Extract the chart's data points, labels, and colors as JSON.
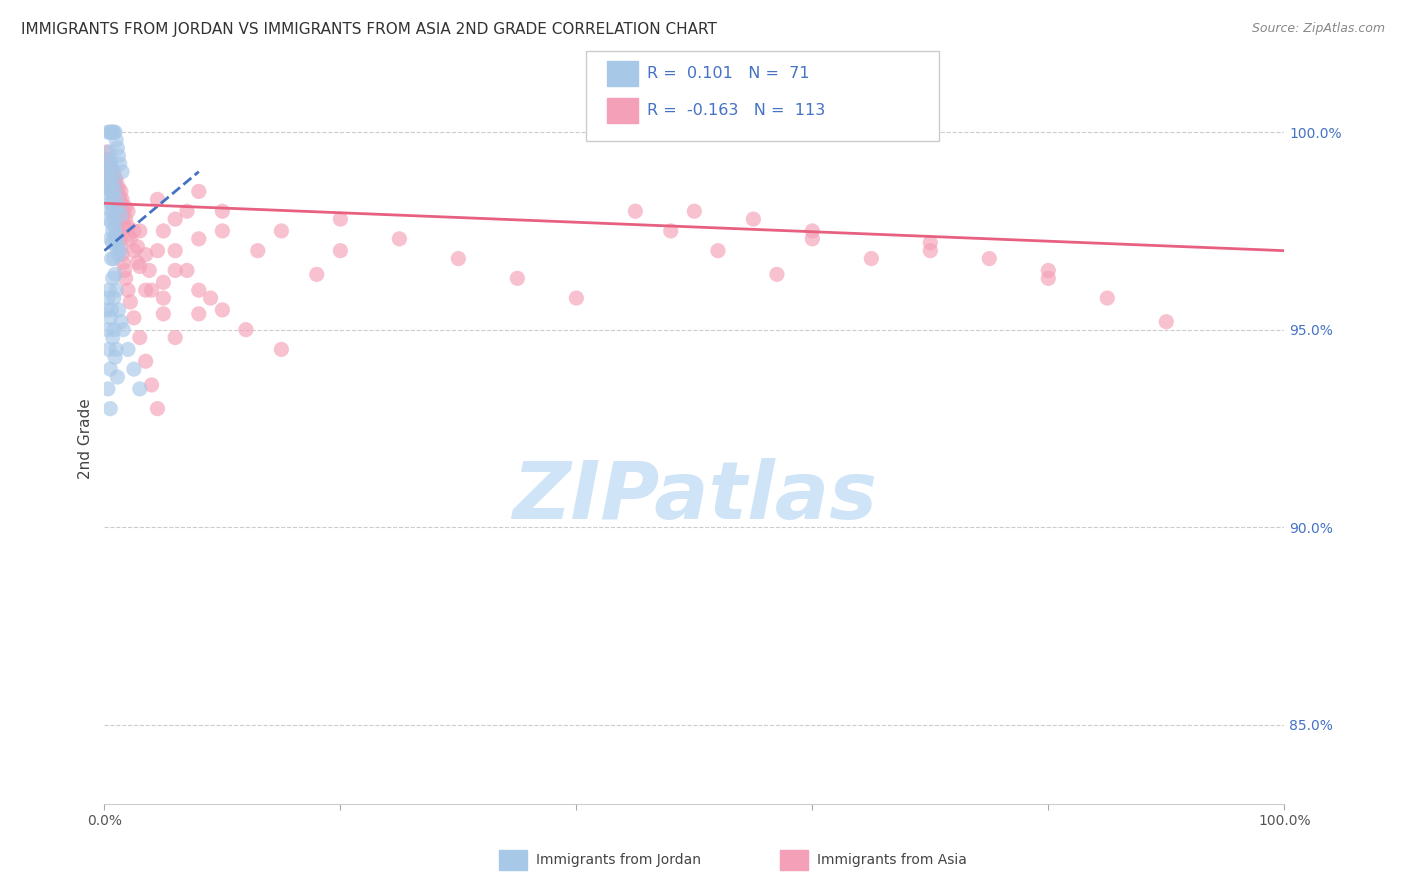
{
  "title": "IMMIGRANTS FROM JORDAN VS IMMIGRANTS FROM ASIA 2ND GRADE CORRELATION CHART",
  "source": "Source: ZipAtlas.com",
  "ylabel": "2nd Grade",
  "xlim": [
    0.0,
    100.0
  ],
  "ylim": [
    83.0,
    101.5
  ],
  "yticks": [
    85.0,
    90.0,
    95.0,
    100.0
  ],
  "ytick_labels": [
    "85.0%",
    "90.0%",
    "95.0%",
    "100.0%"
  ],
  "legend_jordan_R": "0.101",
  "legend_jordan_N": "71",
  "legend_asia_R": "-0.163",
  "legend_asia_N": "113",
  "color_jordan": "#a8c8e8",
  "color_asia": "#f4a0b8",
  "line_jordan": "#4472c4",
  "line_asia": "#e86080",
  "bg_color": "#ffffff",
  "watermark": "ZIPatlas",
  "watermark_color": "#d0e4f8",
  "jordan_x": [
    0.3,
    0.5,
    0.6,
    0.7,
    0.8,
    0.9,
    1.0,
    1.1,
    1.2,
    1.3,
    1.5,
    0.4,
    0.5,
    0.6,
    0.7,
    0.8,
    0.9,
    1.0,
    1.2,
    1.4,
    0.3,
    0.4,
    0.5,
    0.6,
    0.7,
    0.8,
    0.9,
    1.0,
    1.1,
    1.3,
    0.4,
    0.5,
    0.6,
    0.7,
    0.8,
    1.0,
    1.2,
    0.3,
    0.4,
    0.5,
    0.6,
    0.7,
    0.8,
    0.9,
    1.0,
    0.4,
    0.5,
    0.6,
    0.7,
    0.8,
    1.2,
    1.4,
    1.6,
    2.0,
    2.5,
    3.0,
    0.2,
    0.3,
    0.4,
    0.5,
    0.4,
    0.6,
    0.8,
    1.0,
    0.3,
    0.5,
    0.7,
    0.9,
    1.1,
    0.3,
    0.5
  ],
  "jordan_y": [
    100.0,
    100.0,
    100.0,
    100.0,
    100.0,
    100.0,
    99.8,
    99.6,
    99.4,
    99.2,
    99.0,
    99.5,
    99.3,
    99.1,
    98.9,
    98.7,
    98.5,
    98.3,
    98.1,
    97.9,
    98.8,
    98.6,
    98.4,
    98.2,
    98.0,
    97.8,
    97.6,
    97.4,
    97.2,
    97.0,
    99.0,
    98.5,
    98.0,
    97.5,
    97.3,
    97.1,
    96.9,
    99.2,
    98.7,
    98.2,
    97.7,
    97.2,
    96.8,
    96.4,
    96.0,
    97.8,
    97.3,
    96.8,
    96.3,
    95.8,
    95.5,
    95.2,
    95.0,
    94.5,
    94.0,
    93.5,
    95.5,
    95.0,
    94.5,
    94.0,
    96.0,
    95.5,
    95.0,
    94.5,
    95.8,
    95.3,
    94.8,
    94.3,
    93.8,
    93.5,
    93.0
  ],
  "asia_x": [
    0.2,
    0.3,
    0.4,
    0.5,
    0.6,
    0.7,
    0.8,
    0.9,
    1.0,
    1.1,
    1.2,
    1.3,
    1.4,
    1.5,
    1.6,
    1.7,
    1.8,
    2.0,
    2.2,
    2.5,
    3.0,
    3.5,
    4.0,
    4.5,
    5.0,
    6.0,
    7.0,
    8.0,
    10.0,
    12.0,
    15.0,
    20.0,
    25.0,
    30.0,
    35.0,
    40.0,
    50.0,
    60.0,
    70.0,
    80.0,
    0.3,
    0.5,
    0.7,
    0.9,
    1.1,
    1.3,
    1.5,
    1.7,
    2.0,
    2.5,
    3.0,
    4.0,
    5.0,
    6.0,
    8.0,
    10.0,
    15.0,
    20.0,
    0.4,
    0.6,
    0.8,
    1.0,
    1.2,
    1.4,
    1.8,
    2.2,
    2.8,
    3.5,
    4.5,
    6.0,
    8.0,
    0.5,
    0.7,
    1.0,
    1.3,
    1.6,
    2.0,
    2.8,
    3.8,
    5.0,
    7.0,
    10.0,
    13.0,
    18.0,
    0.4,
    0.6,
    0.9,
    1.2,
    1.5,
    2.0,
    3.0,
    4.5,
    6.0,
    9.0,
    0.3,
    0.5,
    0.8,
    1.0,
    1.4,
    1.8,
    2.5,
    3.5,
    5.0,
    8.0,
    70.0,
    75.0,
    80.0,
    85.0,
    90.0,
    55.0,
    60.0,
    65.0,
    45.0,
    48.0,
    52.0,
    57.0
  ],
  "asia_y": [
    99.5,
    99.3,
    99.1,
    98.9,
    98.7,
    98.5,
    98.3,
    98.1,
    97.9,
    97.7,
    97.5,
    97.3,
    97.1,
    96.9,
    96.7,
    96.5,
    96.3,
    96.0,
    95.7,
    95.3,
    94.8,
    94.2,
    93.6,
    93.0,
    97.5,
    97.0,
    96.5,
    96.0,
    95.5,
    95.0,
    94.5,
    97.8,
    97.3,
    96.8,
    96.3,
    95.8,
    98.0,
    97.5,
    97.0,
    96.5,
    99.0,
    98.8,
    98.6,
    98.4,
    98.2,
    98.0,
    97.8,
    97.6,
    97.4,
    97.0,
    96.6,
    96.0,
    95.4,
    94.8,
    98.5,
    98.0,
    97.5,
    97.0,
    99.2,
    99.0,
    98.8,
    98.6,
    98.4,
    98.2,
    97.8,
    97.3,
    96.7,
    96.0,
    98.3,
    97.8,
    97.3,
    98.9,
    98.7,
    98.5,
    98.3,
    98.0,
    97.6,
    97.1,
    96.5,
    95.8,
    98.0,
    97.5,
    97.0,
    96.4,
    99.1,
    99.0,
    98.8,
    98.6,
    98.3,
    98.0,
    97.5,
    97.0,
    96.5,
    95.8,
    99.3,
    99.2,
    99.0,
    98.8,
    98.5,
    98.1,
    97.5,
    96.9,
    96.2,
    95.4,
    97.2,
    96.8,
    96.3,
    95.8,
    95.2,
    97.8,
    97.3,
    96.8,
    98.0,
    97.5,
    97.0,
    96.4
  ],
  "jordan_line_x": [
    0.0,
    8.0
  ],
  "jordan_line_y": [
    97.0,
    99.0
  ],
  "asia_line_x": [
    0.0,
    100.0
  ],
  "asia_line_y": [
    98.2,
    97.0
  ]
}
